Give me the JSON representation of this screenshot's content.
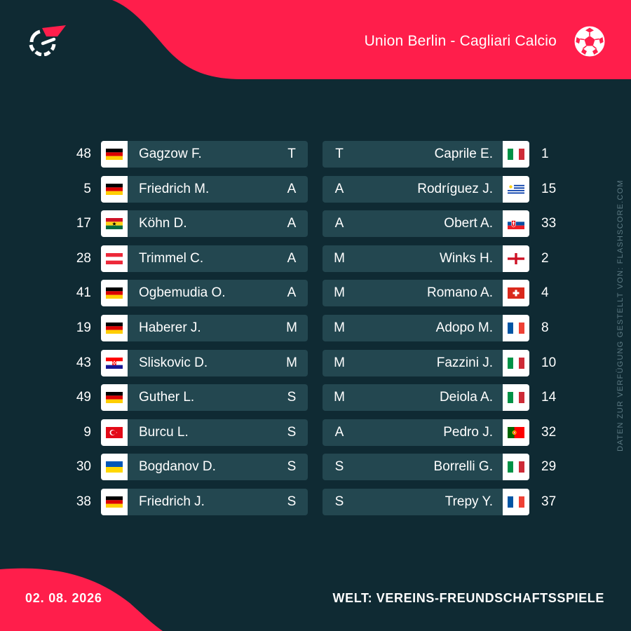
{
  "header": {
    "match": "Union Berlin - Cagliari Calcio",
    "logo_icon": "flashscore-logo-icon",
    "ball_icon": "football-icon"
  },
  "watermark": "DATEN ZUR VERFÜGUNG GESTELLT VON: FLASHSCORE.COM",
  "footer": {
    "date": "02. 08. 2026",
    "competition": "WELT: VEREINS-FREUNDSCHAFTSSPIELE"
  },
  "colors": {
    "background": "#0f2a33",
    "accent": "#ff1e4b",
    "row_bar": "#234750"
  },
  "home_lineup": [
    {
      "number": "48",
      "name": "Gagzow F.",
      "position": "T",
      "flag": "germany"
    },
    {
      "number": "5",
      "name": "Friedrich M.",
      "position": "A",
      "flag": "germany"
    },
    {
      "number": "17",
      "name": "Köhn D.",
      "position": "A",
      "flag": "ghana"
    },
    {
      "number": "28",
      "name": "Trimmel C.",
      "position": "A",
      "flag": "austria"
    },
    {
      "number": "41",
      "name": "Ogbemudia O.",
      "position": "A",
      "flag": "germany"
    },
    {
      "number": "19",
      "name": "Haberer J.",
      "position": "M",
      "flag": "germany"
    },
    {
      "number": "43",
      "name": "Sliskovic D.",
      "position": "M",
      "flag": "croatia"
    },
    {
      "number": "49",
      "name": "Guther L.",
      "position": "S",
      "flag": "germany"
    },
    {
      "number": "9",
      "name": "Burcu L.",
      "position": "S",
      "flag": "turkey"
    },
    {
      "number": "30",
      "name": "Bogdanov D.",
      "position": "S",
      "flag": "ukraine"
    },
    {
      "number": "38",
      "name": "Friedrich J.",
      "position": "S",
      "flag": "germany"
    }
  ],
  "away_lineup": [
    {
      "number": "1",
      "name": "Caprile E.",
      "position": "T",
      "flag": "italy"
    },
    {
      "number": "15",
      "name": "Rodríguez J.",
      "position": "A",
      "flag": "uruguay"
    },
    {
      "number": "33",
      "name": "Obert A.",
      "position": "A",
      "flag": "slovakia"
    },
    {
      "number": "2",
      "name": "Winks H.",
      "position": "M",
      "flag": "england"
    },
    {
      "number": "4",
      "name": "Romano A.",
      "position": "M",
      "flag": "switzerland"
    },
    {
      "number": "8",
      "name": "Adopo M.",
      "position": "M",
      "flag": "france"
    },
    {
      "number": "10",
      "name": "Fazzini J.",
      "position": "M",
      "flag": "italy"
    },
    {
      "number": "14",
      "name": "Deiola A.",
      "position": "M",
      "flag": "italy"
    },
    {
      "number": "32",
      "name": "Pedro J.",
      "position": "A",
      "flag": "portugal"
    },
    {
      "number": "29",
      "name": "Borrelli G.",
      "position": "S",
      "flag": "italy"
    },
    {
      "number": "37",
      "name": "Trepy Y.",
      "position": "S",
      "flag": "france"
    }
  ]
}
